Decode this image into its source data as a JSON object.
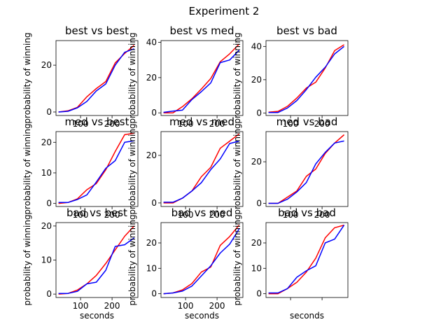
{
  "figure": {
    "suptitle": "Experiment 2",
    "series_colors": [
      "#ff0000",
      "#0000ff"
    ]
  },
  "chart_data": [
    {
      "type": "line",
      "title": "best vs best",
      "xlabel": "",
      "ylabel": "probability of winning",
      "xlim": [
        22,
        282
      ],
      "ylim": [
        -1.5,
        30.5
      ],
      "xticks": [
        100,
        200
      ],
      "yticks": [
        0,
        20
      ],
      "xtick_labels_visible": true,
      "x": [
        30,
        60,
        90,
        120,
        150,
        180,
        210,
        240,
        270
      ],
      "series": [
        {
          "color": "#ff0000",
          "values": [
            0.0,
            0.5,
            2.0,
            6.5,
            10.0,
            13.0,
            21.0,
            25.0,
            28.5
          ]
        },
        {
          "color": "#0000ff",
          "values": [
            0.0,
            0.3,
            1.8,
            4.5,
            9.0,
            12.0,
            20.0,
            25.5,
            27.0
          ]
        }
      ]
    },
    {
      "type": "line",
      "title": "best vs med",
      "xlabel": "",
      "ylabel": "probability of winning",
      "xlim": [
        22,
        282
      ],
      "ylim": [
        -1.5,
        41
      ],
      "xticks": [
        100,
        200
      ],
      "yticks": [
        0,
        20,
        40
      ],
      "xtick_labels_visible": true,
      "x": [
        30,
        60,
        90,
        120,
        150,
        180,
        210,
        240,
        270
      ],
      "series": [
        {
          "color": "#ff0000",
          "values": [
            0.0,
            0.0,
            3.5,
            8.0,
            13.5,
            19.5,
            29.0,
            33.5,
            39.0
          ]
        },
        {
          "color": "#0000ff",
          "values": [
            0.3,
            1.0,
            1.5,
            7.5,
            12.0,
            17.0,
            28.5,
            30.0,
            35.5
          ]
        }
      ]
    },
    {
      "type": "line",
      "title": "best vs bad",
      "xlabel": "",
      "ylabel": "probability of winning",
      "xlim": [
        22,
        282
      ],
      "ylim": [
        -1.5,
        43.5
      ],
      "xticks": [
        100,
        200
      ],
      "yticks": [
        0,
        20,
        40
      ],
      "xtick_labels_visible": true,
      "x": [
        30,
        60,
        90,
        120,
        150,
        180,
        210,
        240,
        270
      ],
      "series": [
        {
          "color": "#ff0000",
          "values": [
            0.5,
            1.0,
            4.0,
            9.0,
            15.0,
            18.5,
            27.0,
            37.5,
            41.0
          ]
        },
        {
          "color": "#0000ff",
          "values": [
            0.3,
            0.3,
            3.0,
            7.5,
            14.0,
            21.5,
            27.5,
            35.5,
            40.0
          ]
        }
      ]
    },
    {
      "type": "line",
      "title": "med vs best",
      "xlabel": "",
      "ylabel": "probability of winning",
      "xlim": [
        22,
        282
      ],
      "ylim": [
        -1,
        23.5
      ],
      "xticks": [
        100,
        200
      ],
      "yticks": [
        0,
        10,
        20
      ],
      "xtick_labels_visible": true,
      "x": [
        30,
        60,
        90,
        120,
        150,
        180,
        210,
        240,
        270
      ],
      "series": [
        {
          "color": "#ff0000",
          "values": [
            0.0,
            0.3,
            1.5,
            4.5,
            6.5,
            11.0,
            17.0,
            22.5,
            23.0
          ]
        },
        {
          "color": "#0000ff",
          "values": [
            0.3,
            0.3,
            1.3,
            2.8,
            7.0,
            11.5,
            14.0,
            20.0,
            20.5
          ]
        }
      ]
    },
    {
      "type": "line",
      "title": "med vs med",
      "xlabel": "",
      "ylabel": "probability of winning",
      "xlim": [
        22,
        282
      ],
      "ylim": [
        -1.5,
        30
      ],
      "xticks": [
        100,
        200
      ],
      "yticks": [
        0,
        20
      ],
      "xtick_labels_visible": true,
      "x": [
        30,
        60,
        90,
        120,
        150,
        180,
        210,
        240,
        270
      ],
      "series": [
        {
          "color": "#ff0000",
          "values": [
            0.0,
            0.0,
            2.0,
            5.0,
            11.0,
            15.0,
            23.0,
            26.0,
            29.0
          ]
        },
        {
          "color": "#0000ff",
          "values": [
            0.3,
            0.3,
            2.0,
            5.0,
            8.5,
            14.0,
            18.5,
            25.0,
            26.0
          ]
        }
      ]
    },
    {
      "type": "line",
      "title": "med vs bad",
      "xlabel": "",
      "ylabel": "probability of winning",
      "xlim": [
        22,
        282
      ],
      "ylim": [
        -1.5,
        34.5
      ],
      "xticks": [
        100,
        200
      ],
      "yticks": [
        0,
        20
      ],
      "xtick_labels_visible": true,
      "x": [
        30,
        60,
        90,
        120,
        150,
        180,
        210,
        240,
        270
      ],
      "series": [
        {
          "color": "#ff0000",
          "values": [
            0.0,
            0.0,
            3.0,
            6.0,
            13.0,
            16.5,
            24.0,
            29.0,
            33.0
          ]
        },
        {
          "color": "#0000ff",
          "values": [
            0.0,
            0.0,
            2.0,
            5.5,
            10.0,
            19.0,
            24.5,
            29.0,
            30.0
          ]
        }
      ]
    },
    {
      "type": "line",
      "title": "bad vs best",
      "xlabel": "seconds",
      "ylabel": "probability of winning",
      "xlim": [
        22,
        282
      ],
      "ylim": [
        -1,
        21
      ],
      "xticks": [
        100,
        200
      ],
      "yticks": [
        0,
        10,
        20
      ],
      "xtick_labels_visible": true,
      "x": [
        30,
        60,
        90,
        120,
        150,
        180,
        210,
        240,
        270
      ],
      "series": [
        {
          "color": "#ff0000",
          "values": [
            0.0,
            0.2,
            1.2,
            3.0,
            5.5,
            9.0,
            13.0,
            17.0,
            20.0
          ]
        },
        {
          "color": "#0000ff",
          "values": [
            0.2,
            0.2,
            0.8,
            3.0,
            3.5,
            7.0,
            14.0,
            14.5,
            16.5
          ]
        }
      ]
    },
    {
      "type": "line",
      "title": "bad vs med",
      "xlabel": "seconds",
      "ylabel": "probability of winning",
      "xlim": [
        22,
        282
      ],
      "ylim": [
        -1.5,
        28
      ],
      "xticks": [
        100,
        200
      ],
      "yticks": [
        0,
        10,
        20
      ],
      "xtick_labels_visible": true,
      "x": [
        30,
        60,
        90,
        120,
        150,
        180,
        210,
        240,
        270
      ],
      "series": [
        {
          "color": "#ff0000",
          "values": [
            0.0,
            0.3,
            1.5,
            4.0,
            8.5,
            10.5,
            19.0,
            22.5,
            27.0
          ]
        },
        {
          "color": "#0000ff",
          "values": [
            0.0,
            0.3,
            1.0,
            3.0,
            7.0,
            11.0,
            16.0,
            19.5,
            25.5
          ]
        }
      ]
    },
    {
      "type": "line",
      "title": "bad vs bad",
      "xlabel": "seconds",
      "ylabel": "probability of winning",
      "xlim": [
        22,
        282
      ],
      "ylim": [
        -1.5,
        28
      ],
      "xticks": [
        100,
        200
      ],
      "yticks": [
        0,
        10,
        20
      ],
      "xtick_labels_visible": false,
      "x": [
        30,
        60,
        90,
        120,
        150,
        180,
        210,
        240,
        270
      ],
      "series": [
        {
          "color": "#ff0000",
          "values": [
            0.0,
            0.0,
            2.0,
            4.5,
            8.5,
            14.0,
            22.0,
            26.0,
            27.0
          ]
        },
        {
          "color": "#0000ff",
          "values": [
            0.3,
            0.3,
            2.0,
            6.5,
            9.0,
            11.0,
            20.0,
            21.5,
            27.0
          ]
        }
      ]
    }
  ]
}
